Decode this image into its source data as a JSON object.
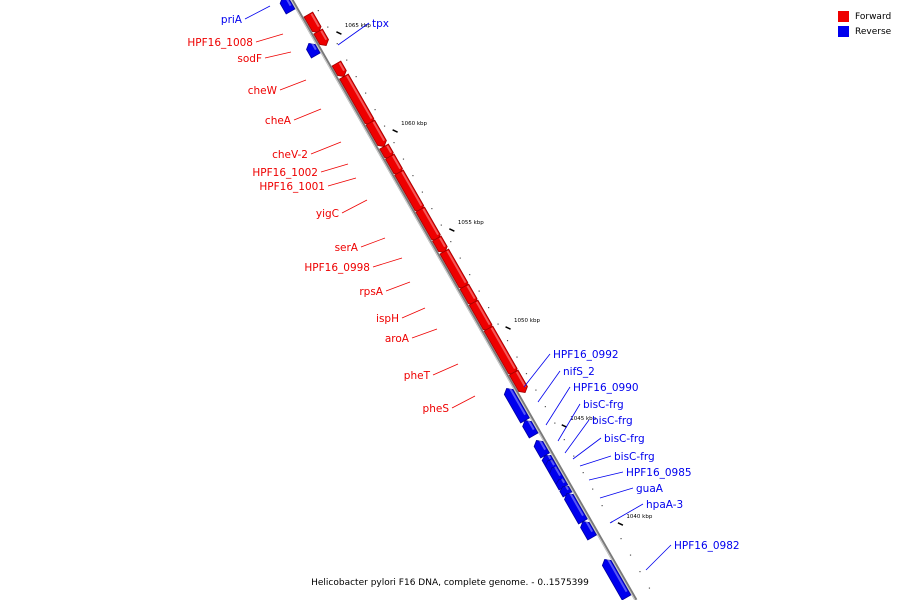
{
  "legend": {
    "forward_label": "Forward",
    "reverse_label": "Reverse",
    "forward_color": "#ee0000",
    "reverse_color": "#0000ee"
  },
  "caption": "Helicobacter pylori F16 DNA, complete genome. - 0..1575399",
  "ticks": [
    {
      "label": "1065 kbp"
    },
    {
      "label": "1060 kbp"
    },
    {
      "label": "1055 kbp"
    },
    {
      "label": "1050 kbp"
    },
    {
      "label": "1045 kbp"
    },
    {
      "label": "1040 kbp"
    }
  ],
  "genes": [
    {
      "name": "priA",
      "strand": "reverse"
    },
    {
      "name": "tpx",
      "strand": "reverse"
    },
    {
      "name": "HPF16_1008",
      "strand": "forward"
    },
    {
      "name": "sodF",
      "strand": "forward"
    },
    {
      "name": "cheW",
      "strand": "forward"
    },
    {
      "name": "cheA",
      "strand": "forward"
    },
    {
      "name": "cheV-2",
      "strand": "forward"
    },
    {
      "name": "HPF16_1002",
      "strand": "forward"
    },
    {
      "name": "HPF16_1001",
      "strand": "forward"
    },
    {
      "name": "yigC",
      "strand": "forward"
    },
    {
      "name": "serA",
      "strand": "forward"
    },
    {
      "name": "HPF16_0998",
      "strand": "forward"
    },
    {
      "name": "rpsA",
      "strand": "forward"
    },
    {
      "name": "ispH",
      "strand": "forward"
    },
    {
      "name": "aroA",
      "strand": "forward"
    },
    {
      "name": "pheT",
      "strand": "forward"
    },
    {
      "name": "pheS",
      "strand": "forward"
    },
    {
      "name": "HPF16_0992",
      "strand": "reverse"
    },
    {
      "name": "nifS_2",
      "strand": "reverse"
    },
    {
      "name": "HPF16_0990",
      "strand": "reverse"
    },
    {
      "name": "bisC-frg",
      "strand": "reverse"
    },
    {
      "name": "bisC-frg",
      "strand": "reverse"
    },
    {
      "name": "bisC-frg",
      "strand": "reverse"
    },
    {
      "name": "bisC-frg",
      "strand": "reverse"
    },
    {
      "name": "HPF16_0985",
      "strand": "reverse"
    },
    {
      "name": "guaA",
      "strand": "reverse"
    },
    {
      "name": "hpaA-3",
      "strand": "reverse"
    },
    {
      "name": "HPF16_0982",
      "strand": "reverse"
    }
  ]
}
